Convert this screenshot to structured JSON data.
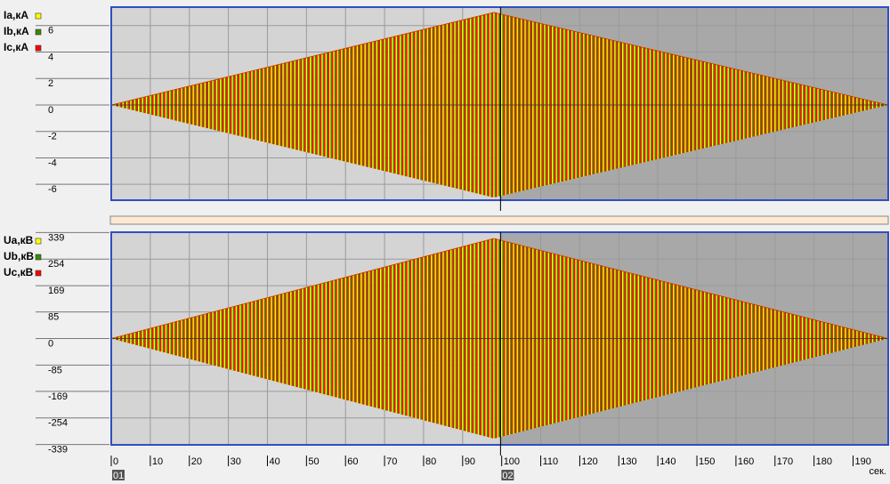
{
  "chart_data": [
    {
      "type": "oscillogram",
      "series": [
        {
          "name": "Ia,кА",
          "color": "#ffff00",
          "values": [
            0,
            7,
            0
          ]
        },
        {
          "name": "Ib,кА",
          "color": "#3a8a00",
          "values": [
            0,
            7,
            0
          ]
        },
        {
          "name": "Ic,кА",
          "color": "#ff0000",
          "values": [
            0,
            7,
            0
          ]
        }
      ],
      "x": [
        0,
        98,
        199
      ],
      "xlim": [
        0,
        199
      ],
      "xticks": [
        0,
        10,
        20,
        30,
        40,
        50,
        60,
        70,
        80,
        90,
        100,
        110,
        120,
        130,
        140,
        150,
        160,
        170,
        180,
        190
      ],
      "ylim": [
        -7.2,
        7.4
      ],
      "yticks": [
        6,
        4,
        2,
        0,
        -2,
        -4,
        -6
      ],
      "grid": true,
      "cursor": 99.7
    },
    {
      "type": "oscillogram",
      "series": [
        {
          "name": "Ua,кВ",
          "color": "#ffff00",
          "values": [
            0,
            320,
            0
          ]
        },
        {
          "name": "Ub,кВ",
          "color": "#3a8a00",
          "values": [
            0,
            320,
            0
          ]
        },
        {
          "name": "Uc,кВ",
          "color": "#ff0000",
          "values": [
            0,
            320,
            0
          ]
        }
      ],
      "x": [
        0,
        98,
        199
      ],
      "xlim": [
        0,
        199
      ],
      "xticks": [
        0,
        10,
        20,
        30,
        40,
        50,
        60,
        70,
        80,
        90,
        100,
        110,
        120,
        130,
        140,
        150,
        160,
        170,
        180,
        190
      ],
      "xlabel": "сек.",
      "ylim": [
        -340,
        340
      ],
      "yticks": [
        339,
        254,
        169,
        85,
        0,
        -85,
        -169,
        -254,
        -339
      ],
      "grid": true,
      "cursor": 99.7,
      "markers": [
        {
          "label": "01",
          "x": 0
        },
        {
          "label": "02",
          "x": 99.7
        }
      ]
    }
  ]
}
